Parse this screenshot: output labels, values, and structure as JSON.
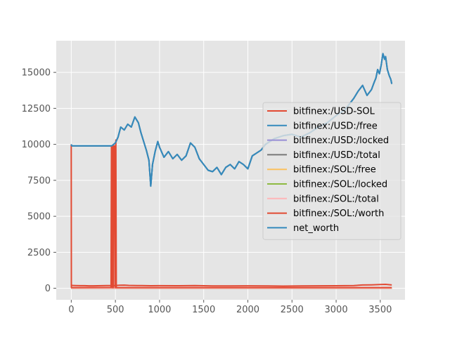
{
  "chart_data": {
    "type": "line",
    "style": "ggplot",
    "grid": true,
    "legend_position": "right",
    "xlim": [
      -170,
      3780
    ],
    "ylim": [
      -800,
      17200
    ],
    "x_ticks": [
      0,
      500,
      1000,
      1500,
      2000,
      2500,
      3000,
      3500
    ],
    "y_ticks": [
      0,
      2500,
      5000,
      7500,
      10000,
      12500,
      15000
    ],
    "x_tick_labels": [
      "0",
      "500",
      "1000",
      "1500",
      "2000",
      "2500",
      "3000",
      "3500"
    ],
    "y_tick_labels": [
      "0",
      "2500",
      "5000",
      "7500",
      "10000",
      "12500",
      "15000"
    ],
    "series": [
      {
        "name": "bitfinex:/USD-SOL",
        "color": "#E24A33",
        "points": [
          [
            0,
            200
          ],
          [
            50,
            190
          ],
          [
            100,
            180
          ],
          [
            150,
            180
          ],
          [
            200,
            170
          ],
          [
            250,
            170
          ],
          [
            300,
            175
          ],
          [
            350,
            180
          ],
          [
            400,
            185
          ],
          [
            450,
            190
          ],
          [
            500,
            195
          ],
          [
            550,
            210
          ],
          [
            600,
            220
          ],
          [
            650,
            200
          ],
          [
            700,
            195
          ],
          [
            750,
            190
          ],
          [
            800,
            185
          ],
          [
            900,
            175
          ],
          [
            1000,
            180
          ],
          [
            1200,
            175
          ],
          [
            1400,
            185
          ],
          [
            1600,
            165
          ],
          [
            1800,
            160
          ],
          [
            2000,
            170
          ],
          [
            2200,
            165
          ],
          [
            2400,
            150
          ],
          [
            2600,
            160
          ],
          [
            2800,
            170
          ],
          [
            3000,
            175
          ],
          [
            3200,
            190
          ],
          [
            3300,
            230
          ],
          [
            3400,
            240
          ],
          [
            3500,
            260
          ],
          [
            3560,
            275
          ],
          [
            3630,
            230
          ]
        ]
      },
      {
        "name": "bitfinex:/USD:/free",
        "color": "#348ABD",
        "points": [
          [
            0,
            10000
          ],
          [
            5,
            9900
          ],
          [
            460,
            9900
          ],
          [
            470,
            9950
          ],
          [
            500,
            10100
          ],
          [
            530,
            10500
          ],
          [
            560,
            11200
          ],
          [
            600,
            11000
          ],
          [
            640,
            11400
          ],
          [
            680,
            11200
          ],
          [
            720,
            11900
          ],
          [
            760,
            11500
          ],
          [
            790,
            10800
          ],
          [
            820,
            10200
          ],
          [
            850,
            9600
          ],
          [
            880,
            8900
          ],
          [
            900,
            7100
          ],
          [
            920,
            8600
          ],
          [
            950,
            9500
          ],
          [
            980,
            10200
          ],
          [
            1000,
            9800
          ],
          [
            1050,
            9100
          ],
          [
            1100,
            9500
          ],
          [
            1150,
            9000
          ],
          [
            1200,
            9300
          ],
          [
            1250,
            8900
          ],
          [
            1300,
            9200
          ],
          [
            1350,
            10100
          ],
          [
            1400,
            9800
          ],
          [
            1450,
            9000
          ],
          [
            1500,
            8600
          ],
          [
            1550,
            8200
          ],
          [
            1600,
            8100
          ],
          [
            1650,
            8400
          ],
          [
            1700,
            7900
          ],
          [
            1750,
            8400
          ],
          [
            1800,
            8600
          ],
          [
            1850,
            8300
          ],
          [
            1900,
            8800
          ],
          [
            1950,
            8600
          ],
          [
            2000,
            8300
          ],
          [
            2050,
            9200
          ],
          [
            2100,
            9400
          ],
          [
            2150,
            9600
          ],
          [
            2200,
            10000
          ],
          [
            2300,
            10400
          ],
          [
            2400,
            10600
          ],
          [
            2500,
            10700
          ],
          [
            2600,
            10500
          ],
          [
            2700,
            10800
          ],
          [
            2800,
            11200
          ],
          [
            2900,
            11500
          ],
          [
            3000,
            12000
          ],
          [
            3100,
            12400
          ],
          [
            3200,
            13200
          ],
          [
            3250,
            13700
          ],
          [
            3300,
            14100
          ],
          [
            3350,
            13400
          ],
          [
            3400,
            13800
          ],
          [
            3430,
            14300
          ],
          [
            3450,
            14600
          ],
          [
            3470,
            15200
          ],
          [
            3490,
            14900
          ],
          [
            3510,
            15500
          ],
          [
            3530,
            16300
          ],
          [
            3550,
            15900
          ],
          [
            3560,
            16100
          ],
          [
            3580,
            15200
          ],
          [
            3600,
            14800
          ],
          [
            3620,
            14500
          ],
          [
            3630,
            14200
          ]
        ]
      },
      {
        "name": "bitfinex:/USD:/locked",
        "color": "#988ED5",
        "points": [
          [
            0,
            0
          ],
          [
            3630,
            0
          ]
        ]
      },
      {
        "name": "bitfinex:/USD:/total",
        "color": "#777777",
        "points": [
          [
            0,
            10000
          ],
          [
            5,
            9900
          ],
          [
            460,
            9900
          ],
          [
            470,
            9950
          ],
          [
            500,
            10100
          ],
          [
            530,
            10500
          ],
          [
            560,
            11200
          ],
          [
            600,
            11000
          ],
          [
            640,
            11400
          ],
          [
            680,
            11200
          ],
          [
            720,
            11900
          ],
          [
            760,
            11500
          ],
          [
            790,
            10800
          ],
          [
            820,
            10200
          ],
          [
            850,
            9600
          ],
          [
            880,
            8900
          ],
          [
            900,
            7100
          ],
          [
            920,
            8600
          ],
          [
            950,
            9500
          ],
          [
            980,
            10200
          ],
          [
            1000,
            9800
          ],
          [
            1050,
            9100
          ],
          [
            1100,
            9500
          ],
          [
            1150,
            9000
          ],
          [
            1200,
            9300
          ],
          [
            1250,
            8900
          ],
          [
            1300,
            9200
          ],
          [
            1350,
            10100
          ],
          [
            1400,
            9800
          ],
          [
            1450,
            9000
          ],
          [
            1500,
            8600
          ],
          [
            1550,
            8200
          ],
          [
            1600,
            8100
          ],
          [
            1650,
            8400
          ],
          [
            1700,
            7900
          ],
          [
            1750,
            8400
          ],
          [
            1800,
            8600
          ],
          [
            1850,
            8300
          ],
          [
            1900,
            8800
          ],
          [
            1950,
            8600
          ],
          [
            2000,
            8300
          ],
          [
            2050,
            9200
          ],
          [
            2100,
            9400
          ],
          [
            2150,
            9600
          ],
          [
            2200,
            10000
          ],
          [
            2300,
            10400
          ],
          [
            2400,
            10600
          ],
          [
            2500,
            10700
          ],
          [
            2600,
            10500
          ],
          [
            2700,
            10800
          ],
          [
            2800,
            11200
          ],
          [
            2900,
            11500
          ],
          [
            3000,
            12000
          ],
          [
            3100,
            12400
          ],
          [
            3200,
            13200
          ],
          [
            3250,
            13700
          ],
          [
            3300,
            14100
          ],
          [
            3350,
            13400
          ],
          [
            3400,
            13800
          ],
          [
            3430,
            14300
          ],
          [
            3450,
            14600
          ],
          [
            3470,
            15200
          ],
          [
            3490,
            14900
          ],
          [
            3510,
            15500
          ],
          [
            3530,
            16300
          ],
          [
            3550,
            15900
          ],
          [
            3560,
            16100
          ],
          [
            3580,
            15200
          ],
          [
            3600,
            14800
          ],
          [
            3620,
            14500
          ],
          [
            3630,
            14200
          ]
        ]
      },
      {
        "name": "bitfinex:/SOL:/free",
        "color": "#FBC15E",
        "points": [
          [
            0,
            0
          ],
          [
            3630,
            0
          ]
        ]
      },
      {
        "name": "bitfinex:/SOL:/locked",
        "color": "#8EBA42",
        "points": [
          [
            0,
            0
          ],
          [
            3630,
            0
          ]
        ]
      },
      {
        "name": "bitfinex:/SOL:/total",
        "color": "#FFB5B8",
        "points": [
          [
            0,
            0
          ],
          [
            3630,
            0
          ]
        ]
      },
      {
        "name": "bitfinex:/SOL:/worth",
        "color": "#E24A33",
        "points": [
          [
            0,
            10000
          ],
          [
            1,
            50
          ],
          [
            10,
            50
          ],
          [
            450,
            60
          ],
          [
            455,
            9900
          ],
          [
            460,
            50
          ],
          [
            465,
            9900
          ],
          [
            470,
            50
          ],
          [
            475,
            9900
          ],
          [
            480,
            50
          ],
          [
            485,
            9900
          ],
          [
            495,
            9900
          ],
          [
            500,
            50
          ],
          [
            505,
            10300
          ],
          [
            510,
            50
          ],
          [
            520,
            50
          ],
          [
            3630,
            50
          ]
        ]
      },
      {
        "name": "net_worth",
        "color": "#348ABD",
        "points": [
          [
            0,
            10000
          ],
          [
            5,
            9900
          ],
          [
            460,
            9900
          ],
          [
            470,
            9950
          ],
          [
            500,
            10100
          ],
          [
            530,
            10500
          ],
          [
            560,
            11200
          ],
          [
            600,
            11000
          ],
          [
            640,
            11400
          ],
          [
            680,
            11200
          ],
          [
            720,
            11900
          ],
          [
            760,
            11500
          ],
          [
            790,
            10800
          ],
          [
            820,
            10200
          ],
          [
            850,
            9600
          ],
          [
            880,
            8900
          ],
          [
            900,
            7100
          ],
          [
            920,
            8600
          ],
          [
            950,
            9500
          ],
          [
            980,
            10200
          ],
          [
            1000,
            9800
          ],
          [
            1050,
            9100
          ],
          [
            1100,
            9500
          ],
          [
            1150,
            9000
          ],
          [
            1200,
            9300
          ],
          [
            1250,
            8900
          ],
          [
            1300,
            9200
          ],
          [
            1350,
            10100
          ],
          [
            1400,
            9800
          ],
          [
            1450,
            9000
          ],
          [
            1500,
            8600
          ],
          [
            1550,
            8200
          ],
          [
            1600,
            8100
          ],
          [
            1650,
            8400
          ],
          [
            1700,
            7900
          ],
          [
            1750,
            8400
          ],
          [
            1800,
            8600
          ],
          [
            1850,
            8300
          ],
          [
            1900,
            8800
          ],
          [
            1950,
            8600
          ],
          [
            2000,
            8300
          ],
          [
            2050,
            9200
          ],
          [
            2100,
            9400
          ],
          [
            2150,
            9600
          ],
          [
            2200,
            10000
          ],
          [
            2300,
            10400
          ],
          [
            2400,
            10600
          ],
          [
            2500,
            10700
          ],
          [
            2600,
            10500
          ],
          [
            2700,
            10800
          ],
          [
            2800,
            11200
          ],
          [
            2900,
            11500
          ],
          [
            3000,
            12000
          ],
          [
            3100,
            12400
          ],
          [
            3200,
            13200
          ],
          [
            3250,
            13700
          ],
          [
            3300,
            14100
          ],
          [
            3350,
            13400
          ],
          [
            3400,
            13800
          ],
          [
            3430,
            14300
          ],
          [
            3450,
            14600
          ],
          [
            3470,
            15200
          ],
          [
            3490,
            14900
          ],
          [
            3510,
            15500
          ],
          [
            3530,
            16300
          ],
          [
            3550,
            15900
          ],
          [
            3560,
            16100
          ],
          [
            3580,
            15200
          ],
          [
            3600,
            14800
          ],
          [
            3620,
            14500
          ],
          [
            3630,
            14200
          ]
        ]
      }
    ]
  },
  "colors": {
    "plot_background": "#E5E5E5",
    "grid": "#FFFFFF",
    "tick_label": "#555555",
    "legend_background": "#E5E5E5",
    "legend_border": "#CCCCCC"
  }
}
